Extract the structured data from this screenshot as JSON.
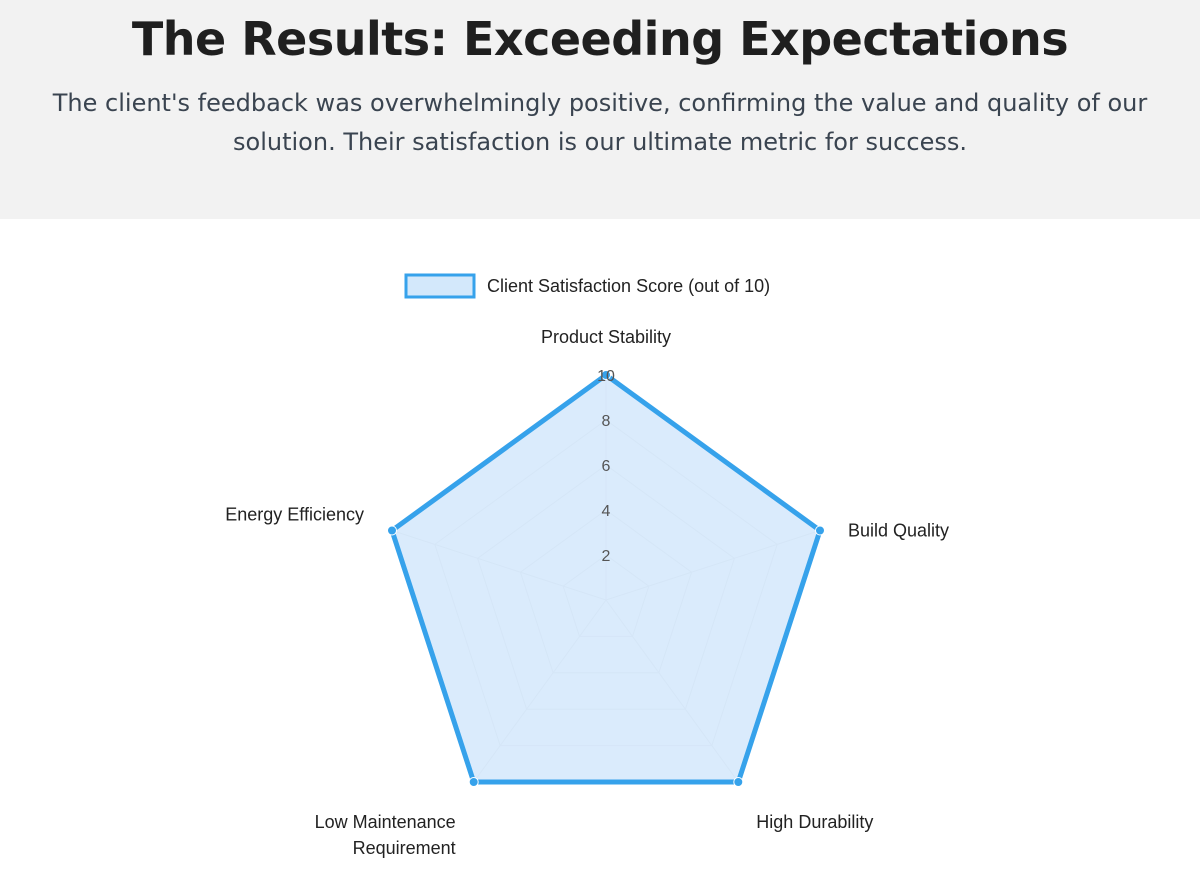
{
  "header": {
    "title": "The Results: Exceeding Expectations",
    "subtitle": "The client's feedback was overwhelmingly positive, confirming the value and quality of our solution. Their satisfaction is our ultimate metric for success."
  },
  "colors": {
    "header_bg": "#f2f2f2",
    "series_line": "#36a2eb",
    "series_fill": "#d3e8fb",
    "grid": "#d9d9d9",
    "text": "#222222"
  },
  "chart_data": {
    "type": "radar",
    "labels": [
      "Product Stability",
      "Build Quality",
      "High Durability",
      "Low Maintenance Requirement",
      "Energy Efficiency"
    ],
    "label_lines": [
      [
        "Product Stability"
      ],
      [
        "Build Quality"
      ],
      [
        "High Durability"
      ],
      [
        "Low Maintenance",
        "Requirement"
      ],
      [
        "Energy Efficiency"
      ]
    ],
    "series": [
      {
        "name": "Client Satisfaction Score (out of 10)",
        "values": [
          10,
          10,
          10,
          10,
          10
        ]
      }
    ],
    "r_min": 0,
    "r_max": 10,
    "ticks": [
      2,
      4,
      6,
      8,
      10
    ],
    "legend": "top"
  }
}
